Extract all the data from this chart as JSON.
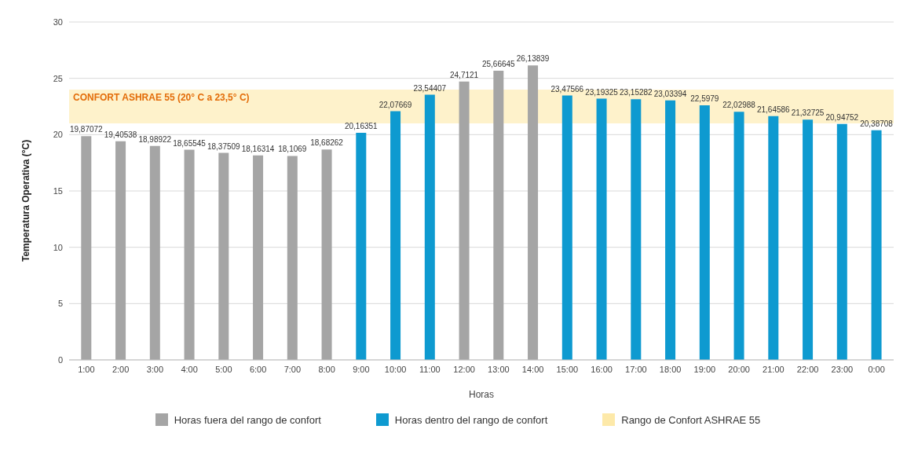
{
  "chart_data": {
    "type": "bar",
    "xlabel": "Horas",
    "ylabel": "Temperatura Operativa (°C)",
    "categories": [
      "1:00",
      "2:00",
      "3:00",
      "4:00",
      "5:00",
      "6:00",
      "7:00",
      "8:00",
      "9:00",
      "10:00",
      "11:00",
      "12:00",
      "13:00",
      "14:00",
      "15:00",
      "16:00",
      "17:00",
      "18:00",
      "19:00",
      "20:00",
      "21:00",
      "22:00",
      "23:00",
      "0:00"
    ],
    "stacked": true,
    "series": [
      {
        "name": "Horas fuera del rango de confort",
        "color": "#a5a5a5",
        "values": [
          19.87072,
          19.40538,
          18.98922,
          18.65545,
          18.37509,
          18.16314,
          18.1069,
          18.68262,
          null,
          null,
          null,
          24.7121,
          25.66645,
          26.13839,
          null,
          null,
          null,
          null,
          null,
          null,
          null,
          null,
          null,
          null
        ],
        "value_labels": [
          "19,87072",
          "19,40538",
          "18,98922",
          "18,65545",
          "18,37509",
          "18,16314",
          "18,1069",
          "18,68262",
          null,
          null,
          null,
          "24,7121",
          "25,66645",
          "26,13839",
          null,
          null,
          null,
          null,
          null,
          null,
          null,
          null,
          null,
          null
        ]
      },
      {
        "name": "Horas dentro del rango de confort",
        "color": "#0e9ad0",
        "values": [
          null,
          null,
          null,
          null,
          null,
          null,
          null,
          null,
          20.16351,
          22.07669,
          23.54407,
          null,
          null,
          null,
          23.47566,
          23.19325,
          23.15282,
          23.03394,
          22.5979,
          22.02988,
          21.64586,
          21.32725,
          20.94752,
          20.38708
        ],
        "value_labels": [
          null,
          null,
          null,
          null,
          null,
          null,
          null,
          null,
          "20,16351",
          "22,07669",
          "23,54407",
          null,
          null,
          null,
          "23,47566",
          "23,19325",
          "23,15282",
          "23,03394",
          "22,5979",
          "22,02988",
          "21,64586",
          "21,32725",
          "20,94752",
          "20,38708"
        ]
      }
    ],
    "ylim": [
      0,
      30
    ],
    "yticks": [
      0,
      5,
      10,
      15,
      20,
      25,
      30
    ],
    "grid": "y",
    "legend": "bottom",
    "bands": [
      {
        "axis": "y",
        "from": 21,
        "to": 24,
        "label": "CONFORT ASHRAE 55 (20° C a 23,5° C)",
        "color": "#fde9a9"
      }
    ],
    "annotations": [
      "Rango de Confort ASHRAE 55"
    ]
  }
}
